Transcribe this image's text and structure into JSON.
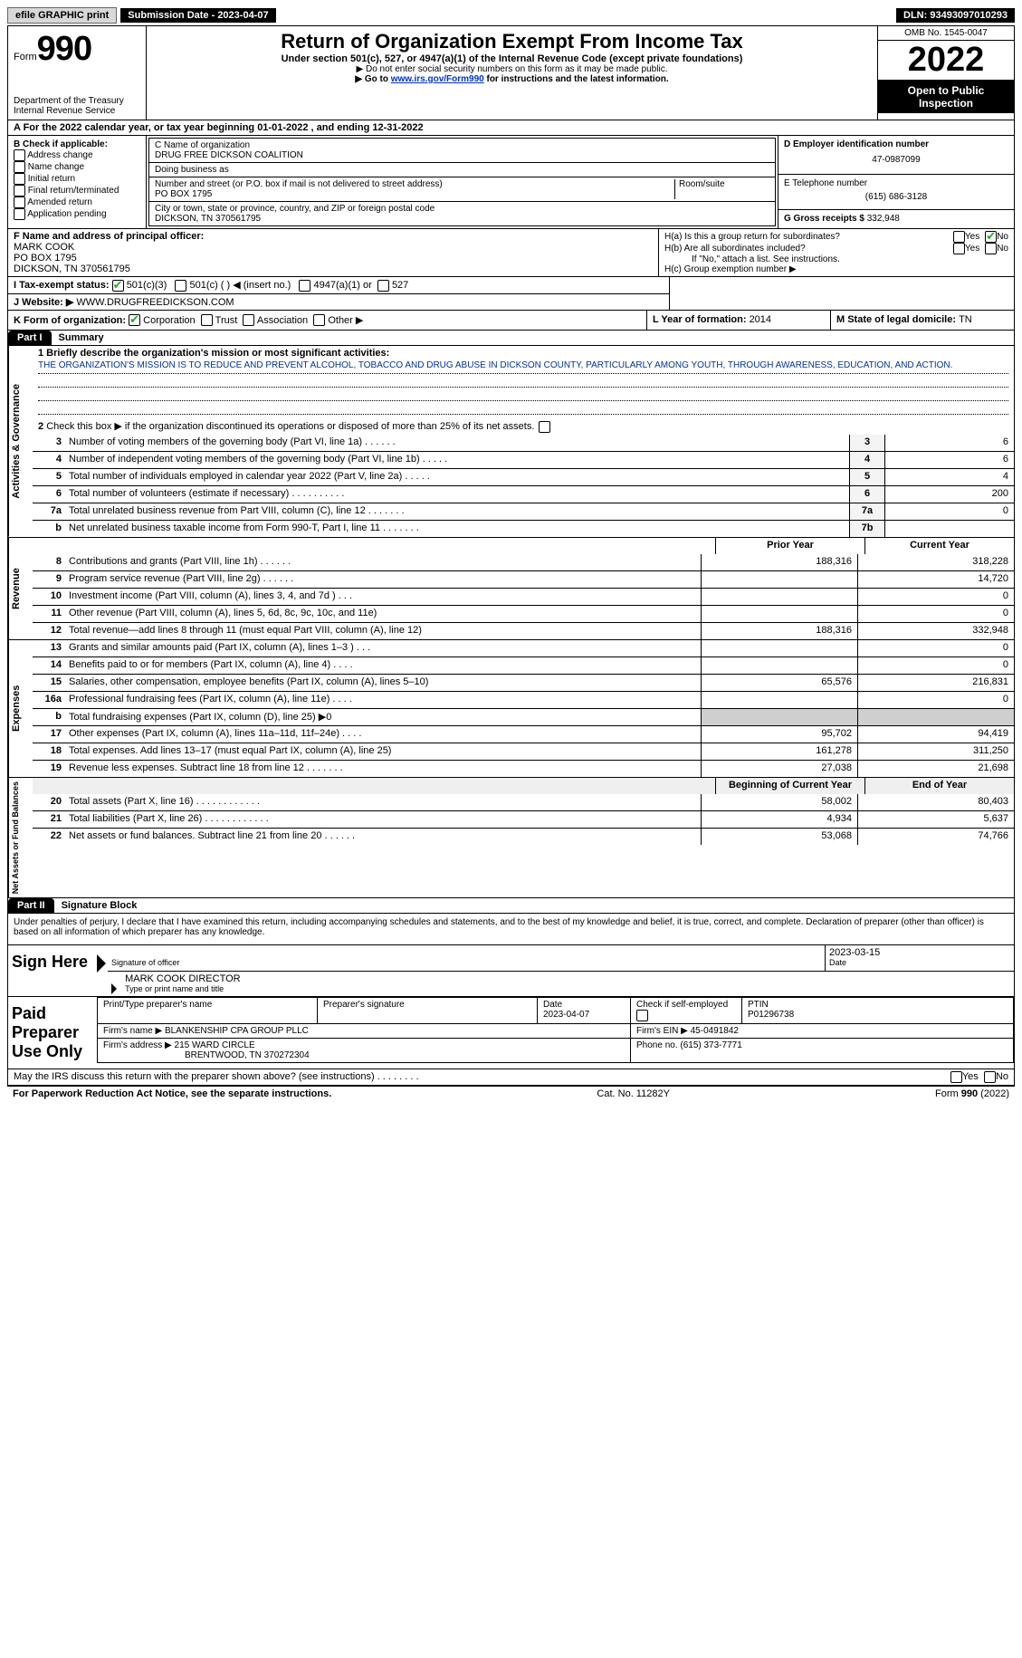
{
  "topbar": {
    "efile_label": "efile GRAPHIC print",
    "submission_label": "Submission Date - 2023-04-07",
    "dln_label": "DLN: 93493097010293"
  },
  "header": {
    "form_word": "Form",
    "form_number": "990",
    "dept": "Department of the Treasury Internal Revenue Service",
    "title": "Return of Organization Exempt From Income Tax",
    "subtitle": "Under section 501(c), 527, or 4947(a)(1) of the Internal Revenue Code (except private foundations)",
    "note1": "▶ Do not enter social security numbers on this form as it may be made public.",
    "note2_pre": "▶ Go to ",
    "note2_link": "www.irs.gov/Form990",
    "note2_post": " for instructions and the latest information.",
    "omb": "OMB No. 1545-0047",
    "year": "2022",
    "open_public": "Open to Public Inspection"
  },
  "row_a": "A For the 2022 calendar year, or tax year beginning 01-01-2022   , and ending 12-31-2022",
  "col_b": {
    "header": "B Check if applicable:",
    "items": [
      "Address change",
      "Name change",
      "Initial return",
      "Final return/terminated",
      "Amended return",
      "Application pending"
    ]
  },
  "col_c": {
    "name_label": "C Name of organization",
    "name": "DRUG FREE DICKSON COALITION",
    "dba_label": "Doing business as",
    "dba": "",
    "street_label": "Number and street (or P.O. box if mail is not delivered to street address)",
    "room_label": "Room/suite",
    "street": "PO BOX 1795",
    "city_label": "City or town, state or province, country, and ZIP or foreign postal code",
    "city": "DICKSON, TN  370561795"
  },
  "col_d": {
    "ein_label": "D Employer identification number",
    "ein": "47-0987099",
    "phone_label": "E Telephone number",
    "phone": "(615) 686-3128",
    "gross_label": "G Gross receipts $ ",
    "gross": "332,948"
  },
  "row_f": {
    "label": "F Name and address of principal officer:",
    "name": "MARK COOK",
    "addr1": "PO BOX 1795",
    "addr2": "DICKSON, TN  370561795"
  },
  "row_h": {
    "ha": "H(a)  Is this a group return for subordinates?",
    "hb": "H(b)  Are all subordinates included?",
    "hb_note": "If \"No,\" attach a list. See instructions.",
    "hc": "H(c)  Group exemption number ▶",
    "yes": "Yes",
    "no": "No"
  },
  "row_i": {
    "label": "I   Tax-exempt status:",
    "c3": "501(c)(3)",
    "c_other": "501(c) (  ) ◀ (insert no.)",
    "a947": "4947(a)(1) or",
    "s527": "527"
  },
  "row_j": {
    "label": "J   Website: ▶",
    "value": " WWW.DRUGFREEDICKSON.COM"
  },
  "row_k": {
    "label": "K Form of organization:",
    "corp": "Corporation",
    "trust": "Trust",
    "assoc": "Association",
    "other": "Other ▶"
  },
  "row_l": {
    "label": "L Year of formation: ",
    "value": "2014"
  },
  "row_m": {
    "label": "M State of legal domicile: ",
    "value": "TN"
  },
  "part1": {
    "header": "Part I",
    "title": "Summary",
    "q1_label": "1   Briefly describe the organization's mission or most significant activities:",
    "mission": "THE ORGANIZATION'S MISSION IS TO REDUCE AND PREVENT ALCOHOL, TOBACCO AND DRUG ABUSE IN DICKSON COUNTY, PARTICULARLY AMONG YOUTH, THROUGH AWARENESS, EDUCATION, AND ACTION.",
    "q2": "Check this box ▶       if the organization discontinued its operations or disposed of more than 25% of its net assets.",
    "vert_activities": "Activities & Governance",
    "vert_revenue": "Revenue",
    "vert_expenses": "Expenses",
    "vert_netassets": "Net Assets or Fund Balances",
    "col_prior": "Prior Year",
    "col_current": "Current Year",
    "col_begin": "Beginning of Current Year",
    "col_end": "End of Year",
    "lines_gov": [
      {
        "n": "3",
        "t": "Number of voting members of the governing body (Part VI, line 1a)   .    .    .    .    .    .",
        "box": "3",
        "v": "6"
      },
      {
        "n": "4",
        "t": "Number of independent voting members of the governing body (Part VI, line 1b)  .    .    .    .    .",
        "box": "4",
        "v": "6"
      },
      {
        "n": "5",
        "t": "Total number of individuals employed in calendar year 2022 (Part V, line 2a)   .    .    .    .    .",
        "box": "5",
        "v": "4"
      },
      {
        "n": "6",
        "t": "Total number of volunteers (estimate if necessary)    .    .    .    .    .    .    .    .    .    .",
        "box": "6",
        "v": "200"
      },
      {
        "n": "7a",
        "t": "Total unrelated business revenue from Part VIII, column (C), line 12   .    .    .    .    .    .    .",
        "box": "7a",
        "v": "0"
      },
      {
        "n": "b",
        "t": "Net unrelated business taxable income from Form 990-T, Part I, line 11  .    .    .    .    .    .    .",
        "box": "7b",
        "v": ""
      }
    ],
    "lines_rev": [
      {
        "n": "8",
        "t": "Contributions and grants (Part VIII, line 1h)   .    .    .    .    .    .",
        "p": "188,316",
        "c": "318,228"
      },
      {
        "n": "9",
        "t": "Program service revenue (Part VIII, line 2g)   .    .    .    .    .    .",
        "p": "",
        "c": "14,720"
      },
      {
        "n": "10",
        "t": "Investment income (Part VIII, column (A), lines 3, 4, and 7d )   .    .    .",
        "p": "",
        "c": "0"
      },
      {
        "n": "11",
        "t": "Other revenue (Part VIII, column (A), lines 5, 6d, 8c, 9c, 10c, and 11e)",
        "p": "",
        "c": "0"
      },
      {
        "n": "12",
        "t": "Total revenue—add lines 8 through 11 (must equal Part VIII, column (A), line 12)",
        "p": "188,316",
        "c": "332,948"
      }
    ],
    "lines_exp": [
      {
        "n": "13",
        "t": "Grants and similar amounts paid (Part IX, column (A), lines 1–3 )  .    .    .",
        "p": "",
        "c": "0"
      },
      {
        "n": "14",
        "t": "Benefits paid to or for members (Part IX, column (A), line 4)  .    .    .    .",
        "p": "",
        "c": "0"
      },
      {
        "n": "15",
        "t": "Salaries, other compensation, employee benefits (Part IX, column (A), lines 5–10)",
        "p": "65,576",
        "c": "216,831"
      },
      {
        "n": "16a",
        "t": "Professional fundraising fees (Part IX, column (A), line 11e)   .    .    .    .",
        "p": "",
        "c": "0"
      },
      {
        "n": "b",
        "t": "Total fundraising expenses (Part IX, column (D), line 25) ▶0",
        "p": "GREY",
        "c": "GREY"
      },
      {
        "n": "17",
        "t": "Other expenses (Part IX, column (A), lines 11a–11d, 11f–24e)  .    .    .    .",
        "p": "95,702",
        "c": "94,419"
      },
      {
        "n": "18",
        "t": "Total expenses. Add lines 13–17 (must equal Part IX, column (A), line 25)",
        "p": "161,278",
        "c": "311,250"
      },
      {
        "n": "19",
        "t": "Revenue less expenses. Subtract line 18 from line 12 .    .    .    .    .    .    .",
        "p": "27,038",
        "c": "21,698"
      }
    ],
    "lines_net": [
      {
        "n": "20",
        "t": "Total assets (Part X, line 16)  .    .    .    .    .    .    .    .    .    .    .    .",
        "p": "58,002",
        "c": "80,403"
      },
      {
        "n": "21",
        "t": "Total liabilities (Part X, line 26)  .    .    .    .    .    .    .    .    .    .    .    .",
        "p": "4,934",
        "c": "5,637"
      },
      {
        "n": "22",
        "t": "Net assets or fund balances. Subtract line 21 from line 20  .    .    .    .    .    .",
        "p": "53,068",
        "c": "74,766"
      }
    ]
  },
  "part2": {
    "header": "Part II",
    "title": "Signature Block",
    "declaration": "Under penalties of perjury, I declare that I have examined this return, including accompanying schedules and statements, and to the best of my knowledge and belief, it is true, correct, and complete. Declaration of preparer (other than officer) is based on all information of which preparer has any knowledge.",
    "sign_here": "Sign Here",
    "sig_officer": "Signature of officer",
    "sig_date": "2023-03-15",
    "date_label": "Date",
    "officer_name": "MARK COOK  DIRECTOR",
    "type_label": "Type or print name and title",
    "paid_label": "Paid Preparer Use Only",
    "print_label": "Print/Type preparer's name",
    "prep_sig_label": "Preparer's signature",
    "prep_date_label": "Date",
    "prep_date": "2023-04-07",
    "check_self": "Check        if self-employed",
    "ptin_label": "PTIN",
    "ptin": "P01296738",
    "firm_name_label": "Firm's name    ▶ ",
    "firm_name": "BLANKENSHIP CPA GROUP PLLC",
    "firm_ein_label": "Firm's EIN ▶ ",
    "firm_ein": "45-0491842",
    "firm_addr_label": "Firm's address ▶ ",
    "firm_addr1": "215 WARD CIRCLE",
    "firm_addr2": "BRENTWOOD, TN  370272304",
    "firm_phone_label": "Phone no. ",
    "firm_phone": "(615) 373-7771",
    "may_irs": "May the IRS discuss this return with the preparer shown above? (see instructions)   .    .    .    .    .    .    .    .",
    "yes": "Yes",
    "no": "No"
  },
  "footer": {
    "left": "For Paperwork Reduction Act Notice, see the separate instructions.",
    "mid": "Cat. No. 11282Y",
    "right": "Form 990 (2022)"
  }
}
